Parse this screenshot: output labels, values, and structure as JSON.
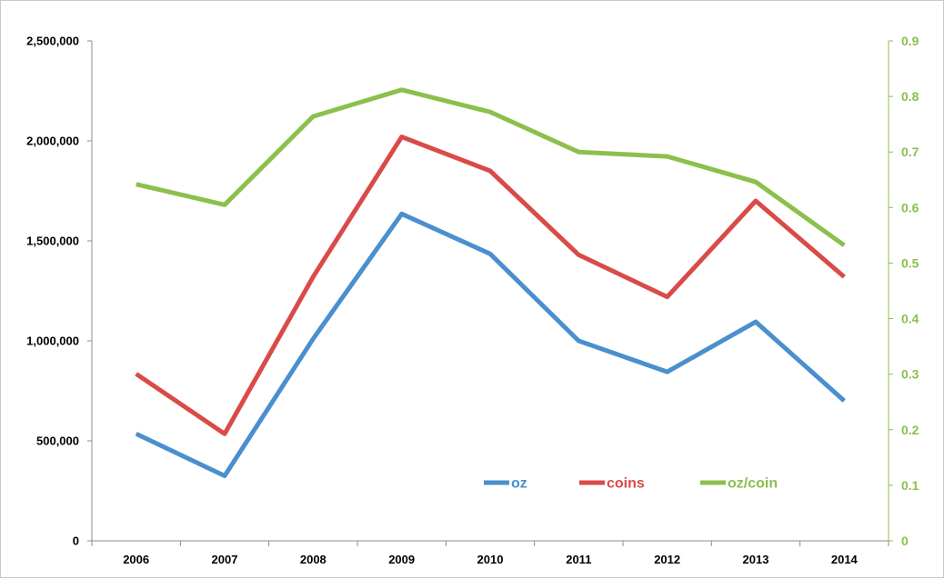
{
  "chart_data": {
    "type": "line",
    "title": "",
    "xlabel": "",
    "ylabel": "",
    "categories": [
      "2006",
      "2007",
      "2008",
      "2009",
      "2010",
      "2011",
      "2012",
      "2013",
      "2014"
    ],
    "y_left": {
      "ylim": [
        0,
        2500000
      ],
      "ticks": [
        0,
        500000,
        1000000,
        1500000,
        2000000,
        2500000
      ],
      "tick_labels": [
        "0",
        "500,000",
        "1,000,000",
        "1,500,000",
        "2,000,000",
        "2,500,000"
      ]
    },
    "y_right": {
      "ylim": [
        0,
        0.9
      ],
      "ticks": [
        0,
        0.1,
        0.2,
        0.3,
        0.4,
        0.5,
        0.6,
        0.7,
        0.8,
        0.9
      ],
      "tick_labels": [
        "0",
        "0.1",
        "0.2",
        "0.3",
        "0.4",
        "0.5",
        "0.6",
        "0.7",
        "0.8",
        "0.9"
      ],
      "color": "#8cbf4c"
    },
    "series": [
      {
        "name": "oz",
        "axis": "left",
        "color": "#4a8fce",
        "values": [
          535000,
          325000,
          1010000,
          1635000,
          1435000,
          1000000,
          845000,
          1095000,
          700000
        ]
      },
      {
        "name": "coins",
        "axis": "left",
        "color": "#d94b48",
        "values": [
          835000,
          535000,
          1320000,
          2020000,
          1850000,
          1430000,
          1220000,
          1700000,
          1320000
        ]
      },
      {
        "name": "oz/coin",
        "axis": "right",
        "color": "#8cbf4c",
        "values": [
          0.642,
          0.605,
          0.764,
          0.812,
          0.772,
          0.7,
          0.692,
          0.646,
          0.532
        ]
      }
    ],
    "legend": {
      "placement": "bottom-center-inside"
    },
    "grid": false
  }
}
